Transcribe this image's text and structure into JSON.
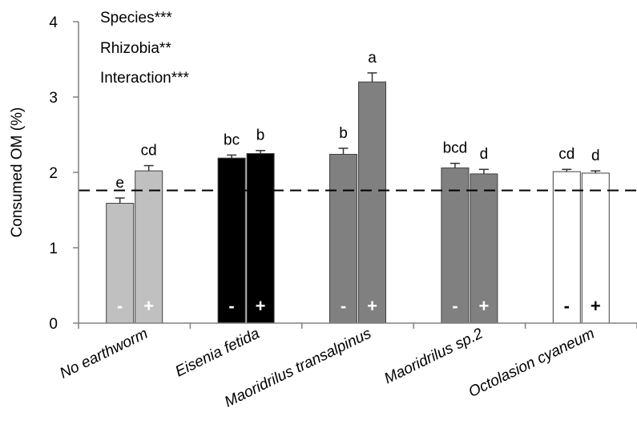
{
  "chart_data": {
    "type": "bar",
    "ylabel": "Consumed OM (%)",
    "xlabel": "",
    "ylim": [
      0,
      4
    ],
    "yticks": [
      "0",
      "1",
      "2",
      "3",
      "4"
    ],
    "reference_line": 1.76,
    "annotations": [
      "Species***",
      "Rhizobia**",
      "Interaction***"
    ],
    "groups": [
      {
        "name": "No earthworm",
        "color": "#c0c0c0",
        "bars": [
          {
            "rhizobia": "-",
            "value": 1.59,
            "error": 0.07,
            "letter": "e"
          },
          {
            "rhizobia": "+",
            "value": 2.02,
            "error": 0.07,
            "letter": "cd"
          }
        ]
      },
      {
        "name": "Eisenia fetida",
        "color": "#000000",
        "bars": [
          {
            "rhizobia": "-",
            "value": 2.19,
            "error": 0.04,
            "letter": "bc"
          },
          {
            "rhizobia": "+",
            "value": 2.25,
            "error": 0.04,
            "letter": "b"
          }
        ]
      },
      {
        "name": "Maoridrilus transalpinus",
        "color": "#808080",
        "bars": [
          {
            "rhizobia": "-",
            "value": 2.24,
            "error": 0.08,
            "letter": "b"
          },
          {
            "rhizobia": "+",
            "value": 3.2,
            "error": 0.12,
            "letter": "a"
          }
        ]
      },
      {
        "name": "Maoridrilus sp.2",
        "color": "#808080",
        "bars": [
          {
            "rhizobia": "-",
            "value": 2.06,
            "error": 0.06,
            "letter": "bcd"
          },
          {
            "rhizobia": "+",
            "value": 1.98,
            "error": 0.06,
            "letter": "d"
          }
        ]
      },
      {
        "name": "Octolasion cyaneum",
        "color": "#ffffff",
        "bars": [
          {
            "rhizobia": "-",
            "value": 2.01,
            "error": 0.03,
            "letter": "cd"
          },
          {
            "rhizobia": "+",
            "value": 1.99,
            "error": 0.03,
            "letter": "d"
          }
        ]
      }
    ]
  }
}
